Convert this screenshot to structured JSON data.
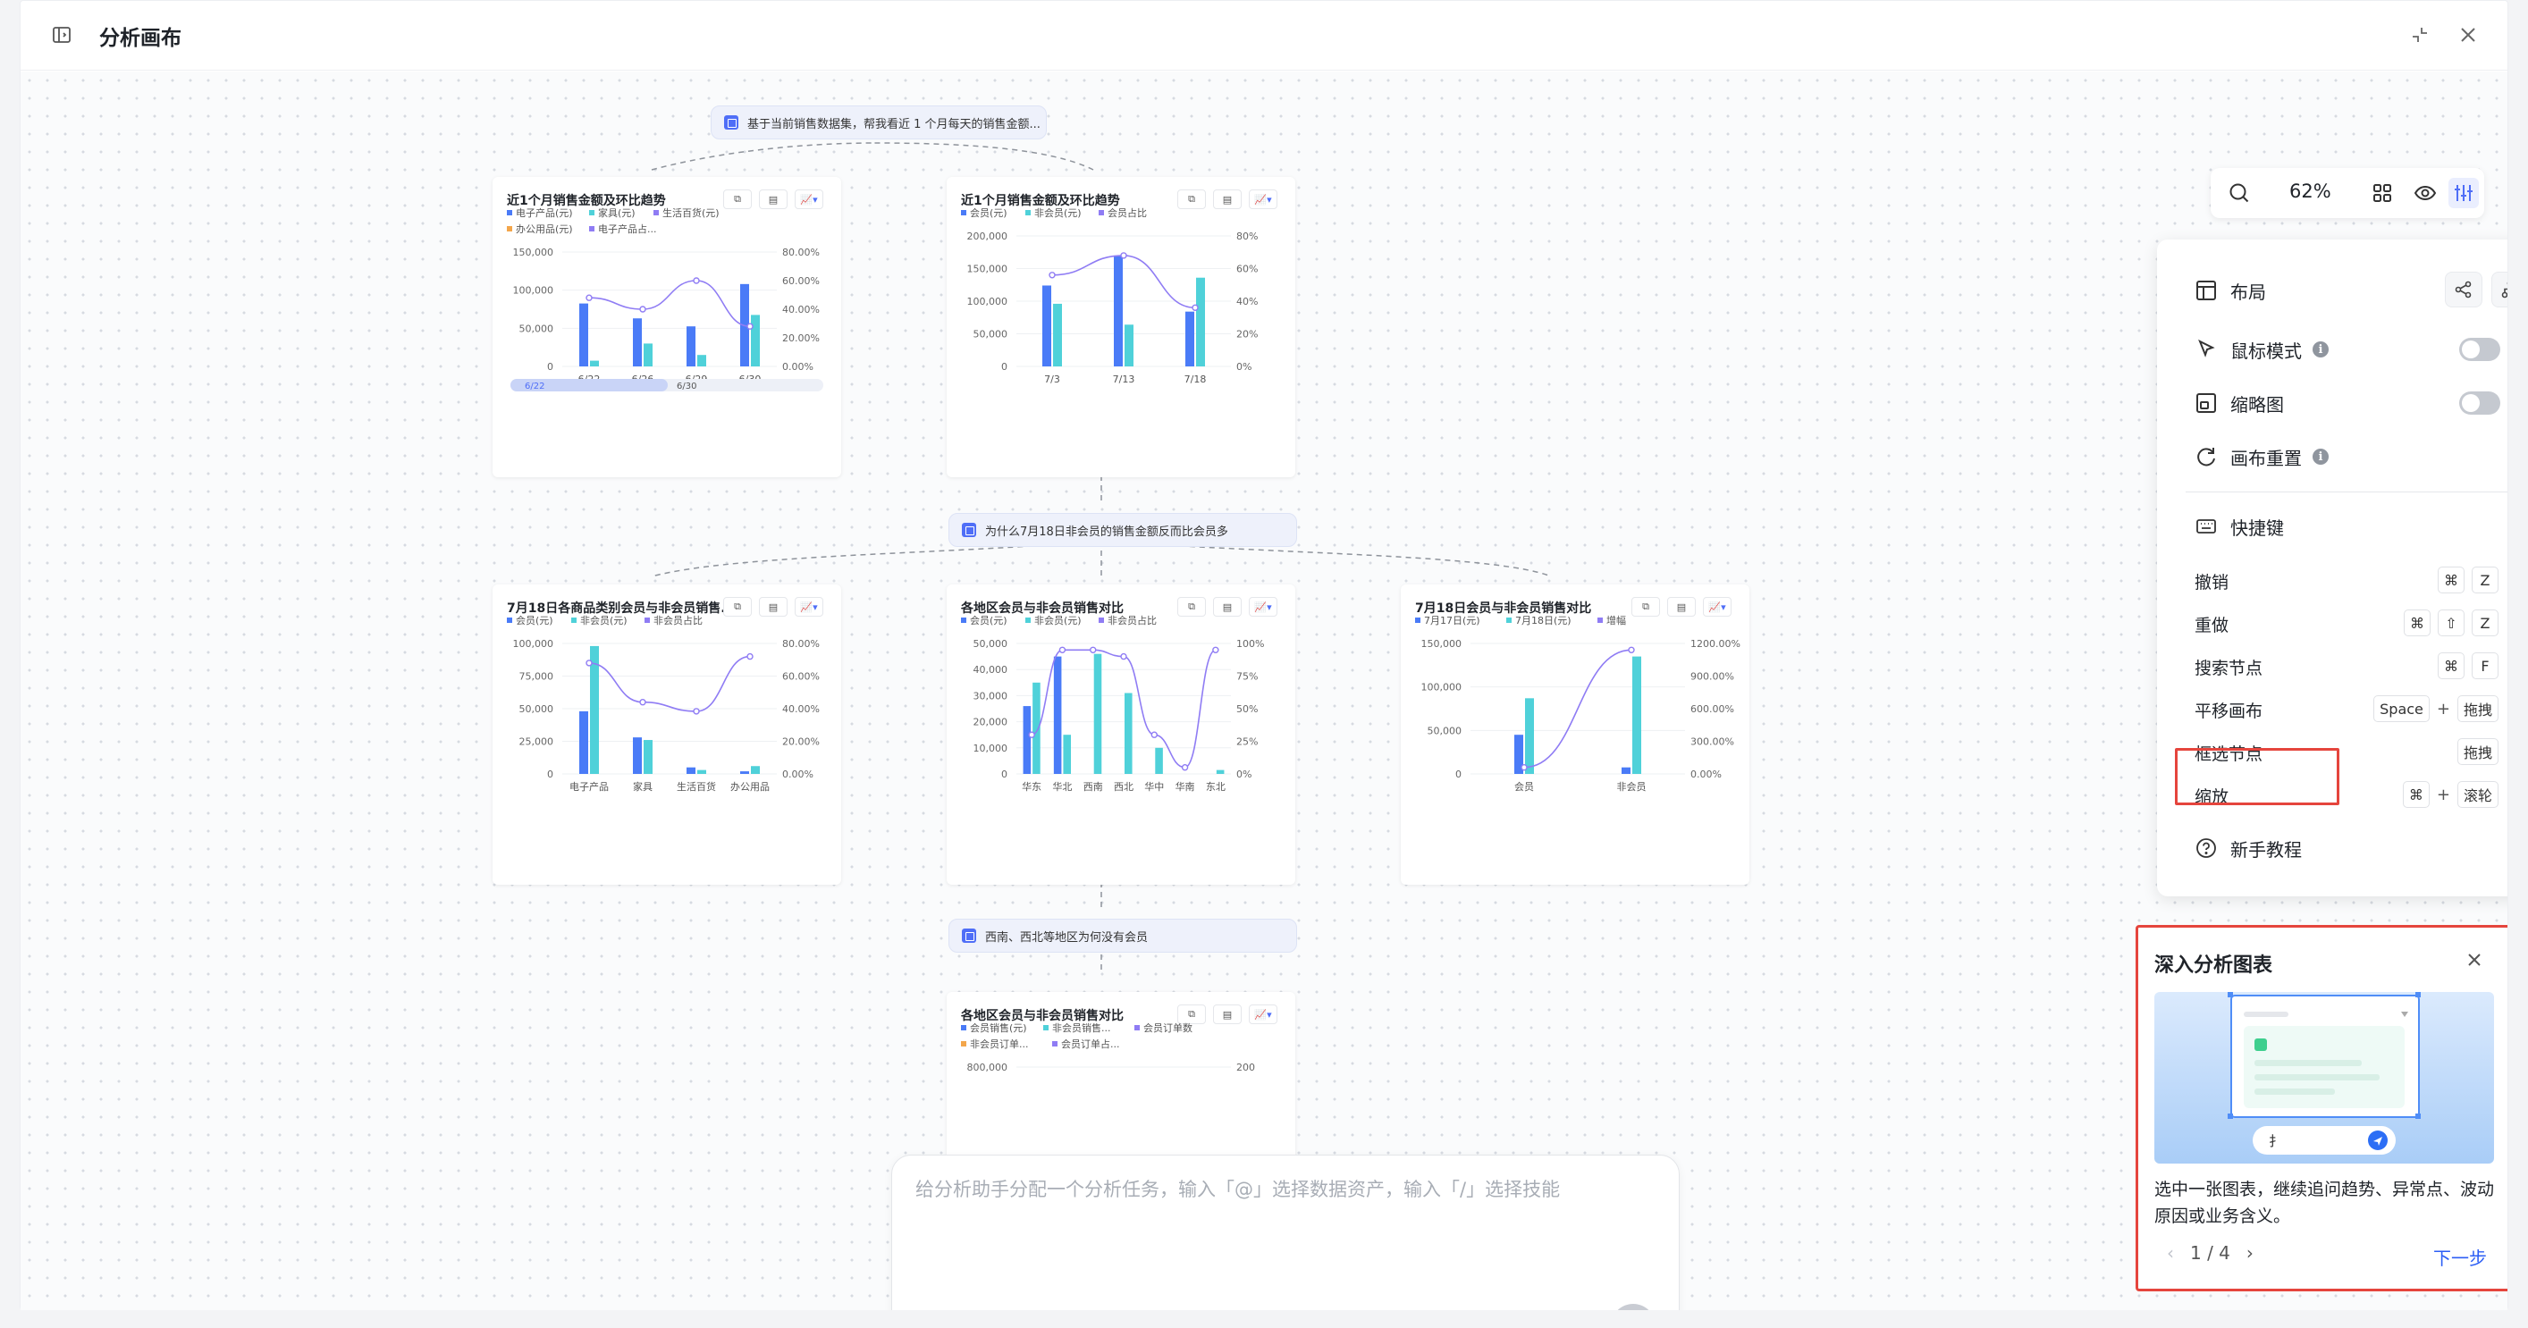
{
  "app": {
    "title": "分析画布"
  },
  "canvas": {
    "questions": [
      "基于当前销售数据集，帮我看近 1 个月每天的销售金额...",
      "为什么7月18日非会员的销售金额反而比会员多",
      "西南、西北等地区为何没有会员"
    ],
    "cards": [
      {
        "title": "近1个月销售金额及环比趋势",
        "legend": [
          "电子产品(元)",
          "家具(元)",
          "生活百货(元)",
          "办公用品(元)",
          "电子产品占..."
        ],
        "yticks": [
          "150,000",
          "100,000",
          "50,000",
          "0"
        ],
        "y2ticks": [
          "80.00%",
          "60.00%",
          "40.00%",
          "20.00%",
          "0.00%"
        ],
        "xticks": [
          "6/22",
          "6/26",
          "6/29",
          "6/30"
        ],
        "slider": [
          "6/22",
          "6/30"
        ]
      },
      {
        "title": "近1个月销售金额及环比趋势",
        "legend": [
          "会员(元)",
          "非会员(元)",
          "会员占比"
        ],
        "yticks": [
          "200,000",
          "150,000",
          "100,000",
          "50,000",
          "0"
        ],
        "y2ticks": [
          "80%",
          "60%",
          "40%",
          "20%",
          "0%"
        ],
        "xticks": [
          "7/3",
          "7/13",
          "7/18"
        ]
      },
      {
        "title": "7月18日各商品类别会员与非会员销售...",
        "legend": [
          "会员(元)",
          "非会员(元)",
          "非会员占比"
        ],
        "yticks": [
          "100,000",
          "75,000",
          "50,000",
          "25,000",
          "0"
        ],
        "y2ticks": [
          "80.00%",
          "60.00%",
          "40.00%",
          "20.00%",
          "0.00%"
        ],
        "xticks": [
          "电子产品",
          "家具",
          "生活百货",
          "办公用品"
        ]
      },
      {
        "title": "各地区会员与非会员销售对比",
        "legend": [
          "会员(元)",
          "非会员(元)",
          "非会员占比"
        ],
        "yticks": [
          "50,000",
          "40,000",
          "30,000",
          "20,000",
          "10,000",
          "0"
        ],
        "y2ticks": [
          "100%",
          "75%",
          "50%",
          "25%",
          "0%"
        ],
        "xticks": [
          "华东",
          "华北",
          "西南",
          "西北",
          "华中",
          "华南",
          "东北"
        ]
      },
      {
        "title": "7月18日会员与非会员销售对比",
        "legend": [
          "7月17日(元)",
          "7月18日(元)",
          "增幅"
        ],
        "yticks": [
          "150,000",
          "100,000",
          "50,000",
          "0"
        ],
        "y2ticks": [
          "1200.00%",
          "900.00%",
          "600.00%",
          "300.00%",
          "0.00%"
        ],
        "xticks": [
          "会员",
          "非会员"
        ]
      },
      {
        "title": "各地区会员与非会员销售对比",
        "legend": [
          "会员销售(元)",
          "非会员销售...",
          "会员订单数",
          "非会员订单...",
          "会员订单占..."
        ],
        "yticks": [
          "800,000"
        ],
        "y2ticks": [
          "200"
        ]
      }
    ]
  },
  "toolbar": {
    "zoom": "62%"
  },
  "menu": {
    "layout": "布局",
    "mouse_mode": "鼠标模式",
    "minimap": "缩略图",
    "reset": "画布重置",
    "shortcuts_title": "快捷键",
    "shortcuts": [
      {
        "label": "撤销",
        "keys": [
          "⌘",
          "Z"
        ]
      },
      {
        "label": "重做",
        "keys": [
          "⌘",
          "⇧",
          "Z"
        ]
      },
      {
        "label": "搜索节点",
        "keys": [
          "⌘",
          "F"
        ]
      },
      {
        "label": "平移画布",
        "keys": [
          "Space",
          "+",
          "拖拽"
        ]
      },
      {
        "label": "框选节点",
        "keys": [
          "拖拽"
        ]
      },
      {
        "label": "缩放",
        "keys": [
          "⌘",
          "+",
          "滚轮"
        ]
      }
    ],
    "tutorial": "新手教程"
  },
  "prompt": {
    "placeholder": "给分析助手分配一个分析任务，输入「@」选择数据资产，输入「/」选择技能"
  },
  "tour": {
    "title": "深入分析图表",
    "description": "选中一张图表，继续追问趋势、异常点、波动原因或业务含义。",
    "page": "1 / 4",
    "next": "下一步",
    "illustration_input": "扌"
  },
  "colors": {
    "accent": "#4f6ef7",
    "bar_blue": "#4a7bf7",
    "bar_teal": "#4fd1d9",
    "line_purple": "#8f7cf4",
    "highlight_red": "#e5453d"
  }
}
